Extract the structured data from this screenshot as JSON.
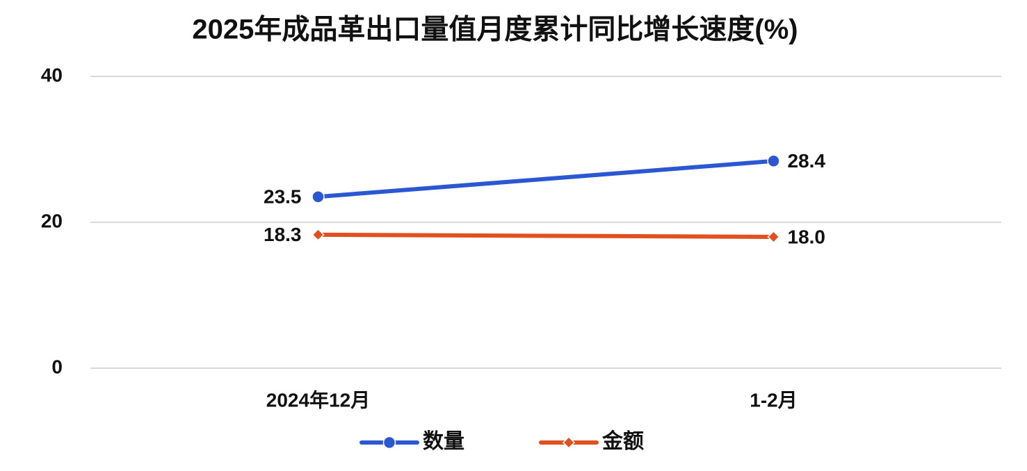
{
  "chart_data": {
    "type": "line",
    "title": "2025年成品革出口量值月度累计同比增长速度(%)",
    "categories": [
      "2024年12月",
      "1-2月"
    ],
    "series": [
      {
        "name": "数量",
        "color": "#2b57d3",
        "marker": "circle",
        "values": [
          23.5,
          28.4
        ]
      },
      {
        "name": "金额",
        "color": "#e2501f",
        "marker": "diamond",
        "values": [
          18.3,
          18.0
        ],
        "value_labels": [
          "18.3",
          "18.0"
        ]
      }
    ],
    "ylim": [
      0,
      40
    ],
    "yticks": [
      0,
      20,
      40
    ],
    "grid": true,
    "legend": "bottom"
  }
}
